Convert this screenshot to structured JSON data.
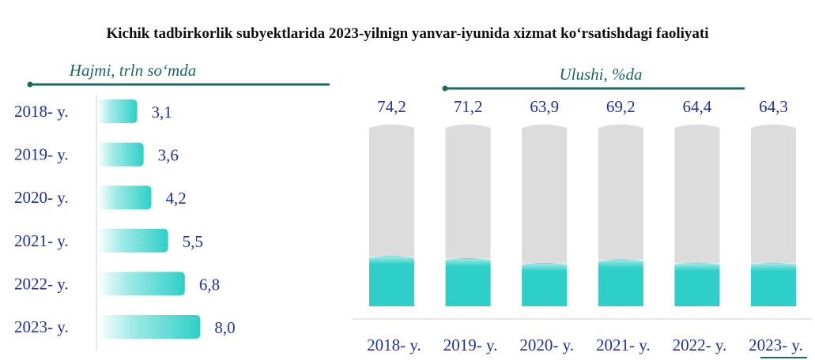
{
  "title": "Kichik tadbirkorlik subyektlarida 2023-yilnign yanvar-iyunida xizmat ko‘rsatishdagi faoliyati",
  "colors": {
    "accent": "#1a6a60",
    "bar_fill": "#2ecfc8",
    "bar_track": "#dcdcdc",
    "text_blue": "#1f2fa8"
  },
  "chart_data": [
    {
      "type": "bar",
      "orientation": "horizontal",
      "label": "Hajmi, trln so‘mda",
      "categories": [
        "2018- y.",
        "2019- y.",
        "2020- y.",
        "2021- y.",
        "2022- y.",
        "2023- y."
      ],
      "values": [
        3.1,
        3.6,
        4.2,
        5.5,
        6.8,
        8.0
      ],
      "value_labels": [
        "3,1",
        "3,6",
        "4,2",
        "5,5",
        "6,8",
        "8,0"
      ],
      "xlim": [
        0,
        10
      ]
    },
    {
      "type": "bar",
      "orientation": "vertical",
      "label": "Ulushi, %da",
      "categories": [
        "2018- y.",
        "2019- y.",
        "2020- y.",
        "2021- y.",
        "2022- y.",
        "2023- y."
      ],
      "values": [
        74.2,
        71.2,
        63.9,
        69.2,
        64.4,
        64.3
      ],
      "value_labels": [
        "74,2",
        "71,2",
        "63,9",
        "69,2",
        "64,4",
        "64,3"
      ]
    }
  ]
}
